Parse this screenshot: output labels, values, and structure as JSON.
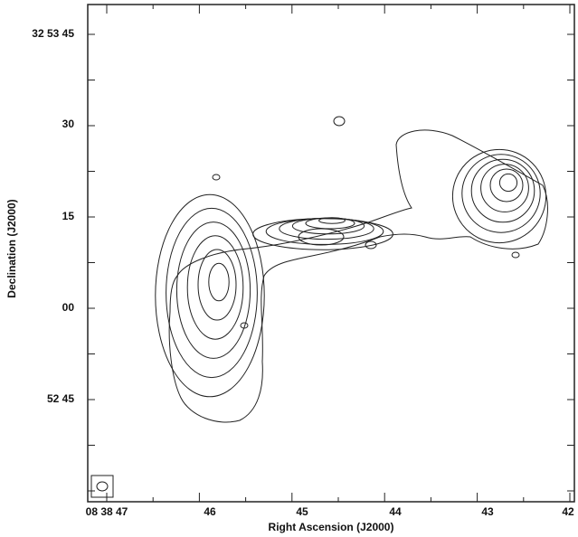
{
  "axes": {
    "x_label": "Right Ascension (J2000)",
    "y_label": "Declination (J2000)",
    "x_ticks": [
      "08 38 47",
      "46",
      "45",
      "44",
      "43",
      "42"
    ],
    "y_ticks": [
      "32 53 45",
      "30",
      "15",
      "00",
      "52 45"
    ]
  }
}
